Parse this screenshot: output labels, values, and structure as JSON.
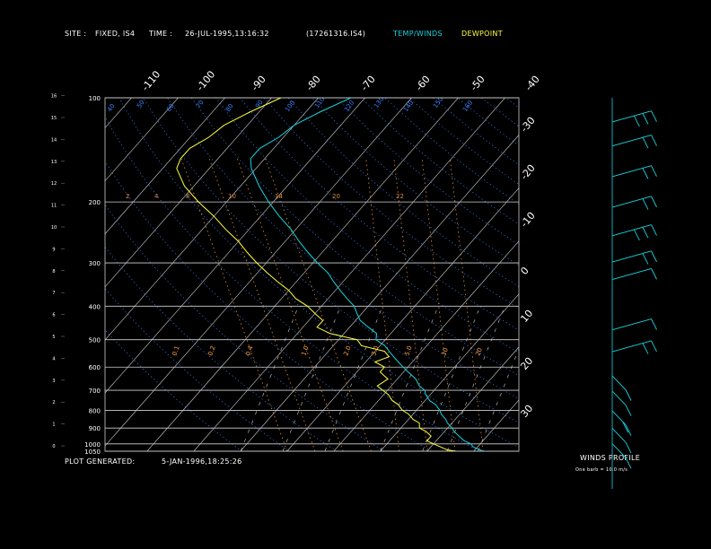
{
  "header": {
    "site_label": "SITE :",
    "site_value": "FIXED, IS4",
    "time_label": "TIME :",
    "time_value": "26-JUL-1995,13:16:32",
    "file_id": "(17261316.IS4)",
    "temp_winds_legend": "TEMP/WINDS",
    "dewpoint_legend": "DEWPOINT"
  },
  "footer": {
    "generated_label": "PLOT GENERATED:",
    "generated_value": "5-JAN-1996,18:25:26"
  },
  "winds_panel": {
    "title": "WINDS PROFILE",
    "note": "One barb = 10.0 m/s"
  },
  "colors": {
    "temperature": "#19d3e0",
    "dewpoint": "#ffff3c",
    "grid": "#cfcfcf",
    "mixing_ratio": "#e08a3c",
    "dry_adiabat": "#3c82ff",
    "moist_adiabat": "#ffa040"
  },
  "chart_data": {
    "type": "line",
    "title": "",
    "subtitle": "",
    "pressure_levels": [
      100,
      200,
      300,
      400,
      500,
      600,
      700,
      800,
      900,
      1000,
      1050
    ],
    "pressure_labels": [
      "100",
      "200",
      "300",
      "400",
      "500",
      "600",
      "700",
      "800",
      "900",
      "1000",
      "1050"
    ],
    "height_km_ticks": [
      "16",
      "15",
      "14",
      "13",
      "12",
      "11",
      "10",
      "9",
      "8",
      "7",
      "6",
      "5",
      "4",
      "3",
      "2",
      "1",
      "0"
    ],
    "height_km_values": [
      16,
      15,
      14,
      13,
      12,
      11,
      10,
      9,
      8,
      7,
      6,
      5,
      4,
      3,
      2,
      1,
      0
    ],
    "top_temp_ticks": [
      "-110",
      "-100",
      "-90",
      "-80",
      "-70",
      "-60",
      "-50",
      "-40"
    ],
    "top_temp_values": [
      -110,
      -100,
      -90,
      -80,
      -70,
      -60,
      -50,
      -40
    ],
    "right_temp_ticks": [
      "-30",
      "-20",
      "-10",
      "0",
      "10",
      "20",
      "30"
    ],
    "right_temp_values": [
      -30,
      -20,
      -10,
      0,
      10,
      20,
      30
    ],
    "theta_labels": [
      "40",
      "50",
      "60",
      "70",
      "80",
      "90",
      "100",
      "110",
      "120",
      "130",
      "140",
      "150",
      "160"
    ],
    "mixing_ratio_labels": [
      "2",
      "4",
      "8",
      "10",
      "14",
      "20",
      "22"
    ],
    "small_mr_labels": [
      "0.1",
      "0.2",
      "0.4",
      "1.0",
      "2.0",
      "3.0",
      "5.0",
      "10",
      "20"
    ],
    "series": [
      {
        "name": "TEMP/WINDS",
        "color": "#19d3e0",
        "pressure": [
          1050,
          1040,
          1020,
          1000,
          980,
          950,
          920,
          900,
          870,
          850,
          820,
          800,
          770,
          750,
          720,
          700,
          680,
          650,
          620,
          600,
          580,
          560,
          540,
          520,
          500,
          480,
          460,
          440,
          420,
          400,
          380,
          360,
          340,
          320,
          300,
          280,
          260,
          240,
          220,
          200,
          180,
          160,
          150,
          140,
          130,
          120,
          110,
          100
        ],
        "temperature": [
          32,
          31,
          29,
          28,
          26,
          24,
          22,
          21,
          19,
          18,
          16,
          15,
          13,
          11,
          9,
          8,
          6,
          4,
          1,
          -1,
          -3,
          -5,
          -7,
          -9,
          -12,
          -13,
          -16,
          -19,
          -21,
          -23,
          -26,
          -29,
          -32,
          -35,
          -39,
          -43,
          -47,
          -51,
          -56,
          -61,
          -66,
          -71,
          -73,
          -73,
          -71,
          -70,
          -67,
          -63
        ]
      },
      {
        "name": "DEWPOINT",
        "color": "#ffff3c",
        "pressure": [
          1050,
          1040,
          1020,
          1000,
          980,
          950,
          920,
          900,
          870,
          850,
          820,
          800,
          770,
          750,
          720,
          700,
          680,
          650,
          620,
          600,
          580,
          560,
          540,
          520,
          500,
          480,
          460,
          440,
          420,
          400,
          380,
          360,
          340,
          320,
          300,
          280,
          260,
          240,
          220,
          200,
          180,
          160,
          150,
          140,
          130,
          120,
          110,
          100
        ],
        "temperature": [
          26,
          24,
          22,
          20,
          18,
          18,
          16,
          14,
          13,
          11,
          9,
          7,
          5,
          3,
          1,
          -1,
          -3,
          -2,
          -5,
          -5,
          -8,
          -6,
          -8,
          -14,
          -16,
          -23,
          -27,
          -27,
          -30,
          -33,
          -37,
          -40,
          -44,
          -48,
          -52,
          -56,
          -60,
          -65,
          -70,
          -76,
          -82,
          -87,
          -88,
          -88,
          -86,
          -85,
          -82,
          -78
        ]
      }
    ],
    "wind_barbs": [
      {
        "level_km": 14.8,
        "barbs": 3
      },
      {
        "level_km": 13.7,
        "barbs": 2
      },
      {
        "level_km": 12.3,
        "barbs": 2
      },
      {
        "level_km": 10.9,
        "barbs": 2
      },
      {
        "level_km": 9.6,
        "barbs": 3
      },
      {
        "level_km": 8.4,
        "barbs": 2
      },
      {
        "level_km": 7.6,
        "barbs": 1
      },
      {
        "level_km": 5.3,
        "barbs": 1
      },
      {
        "level_km": 4.3,
        "barbs": 2
      },
      {
        "level_km": 3.2,
        "barbs": 1
      },
      {
        "level_km": 2.5,
        "barbs": 1
      },
      {
        "level_km": 1.6,
        "barbs": 2
      },
      {
        "level_km": 0.8,
        "barbs": 1
      },
      {
        "level_km": 0.1,
        "barbs": 1
      }
    ],
    "xlabel": "",
    "ylabel": "",
    "grid": true
  }
}
